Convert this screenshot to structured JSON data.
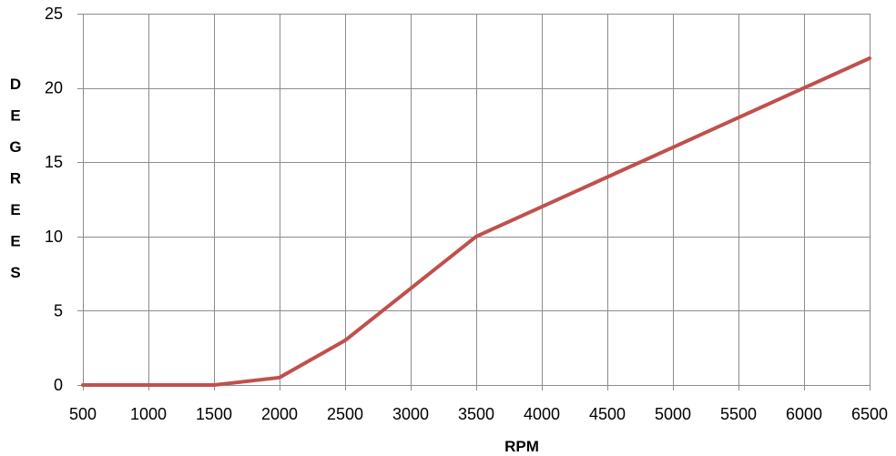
{
  "chart_data": {
    "type": "line",
    "title": "",
    "xlabel": "RPM",
    "ylabel": "DEGREES",
    "x": [
      500,
      1000,
      1500,
      2000,
      2500,
      3000,
      3500,
      4000,
      4500,
      5000,
      5500,
      6000,
      6500
    ],
    "x_tick_labels": [
      "500",
      "1000",
      "1500",
      "2000",
      "2500",
      "3000",
      "3500",
      "4000",
      "4500",
      "5000",
      "5500",
      "6000",
      "6500"
    ],
    "y_ticks": [
      0,
      5,
      10,
      15,
      20,
      25
    ],
    "y_tick_labels": [
      "0",
      "5",
      "10",
      "15",
      "20",
      "25"
    ],
    "xlim": [
      500,
      6500
    ],
    "ylim": [
      0,
      25
    ],
    "grid": true,
    "legend": "none",
    "series": [
      {
        "values": [
          0,
          0,
          0,
          0.5,
          3,
          6.5,
          10,
          12,
          14,
          16,
          18,
          20,
          22
        ],
        "color": "#c0504d"
      }
    ]
  }
}
